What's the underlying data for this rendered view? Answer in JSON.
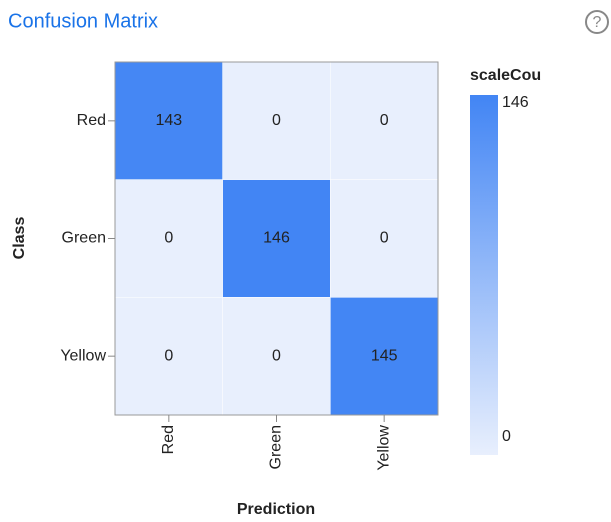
{
  "chart_data": {
    "type": "heatmap",
    "title": "Confusion Matrix",
    "x_categories": [
      "Red",
      "Green",
      "Yellow"
    ],
    "y_categories": [
      "Red",
      "Green",
      "Yellow"
    ],
    "values": [
      [
        143,
        0,
        0
      ],
      [
        0,
        146,
        0
      ],
      [
        0,
        0,
        145
      ]
    ],
    "x_label": "Prediction",
    "y_label": "Class",
    "legend_title": "scaleCou",
    "colorlim": [
      0,
      146
    ],
    "colorticks": [
      0,
      146
    ],
    "colors": [
      "#e8effd",
      "#4285f4"
    ]
  }
}
